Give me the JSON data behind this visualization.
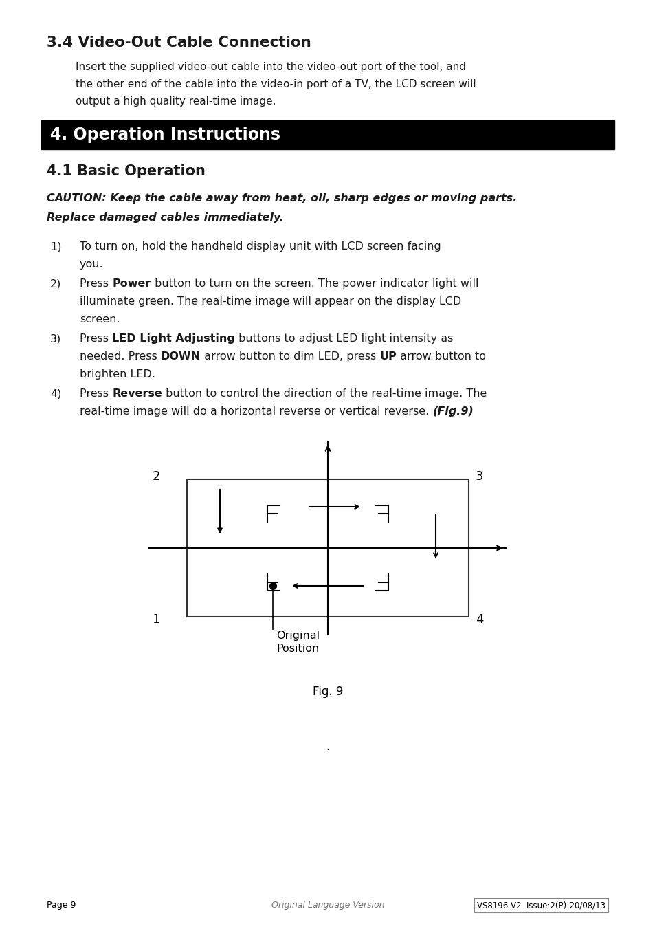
{
  "bg_color": "#ffffff",
  "text_color": "#1a1a1a",
  "section34_title": "3.4 Video-Out Cable Connection",
  "section34_body_lines": [
    "Insert the supplied video-out cable into the video-out port of the tool, and",
    "the other end of the cable into the video-in port of a TV, the LCD screen will",
    "output a high quality real-time image."
  ],
  "section4_title": "4. Operation Instructions",
  "section41_title": "4.1 Basic Operation",
  "caution_lines": [
    "CAUTION: Keep the cable away from heat, oil, sharp edges or moving parts.",
    "Replace damaged cables immediately."
  ],
  "fig_caption": "Fig. 9",
  "dot_note": ".",
  "footer_left": "Page 9",
  "footer_center": "Original Language Version",
  "footer_right_part1": "VS8196.V2",
  "footer_right_part2": "Issue:2(P)-20/08/13"
}
